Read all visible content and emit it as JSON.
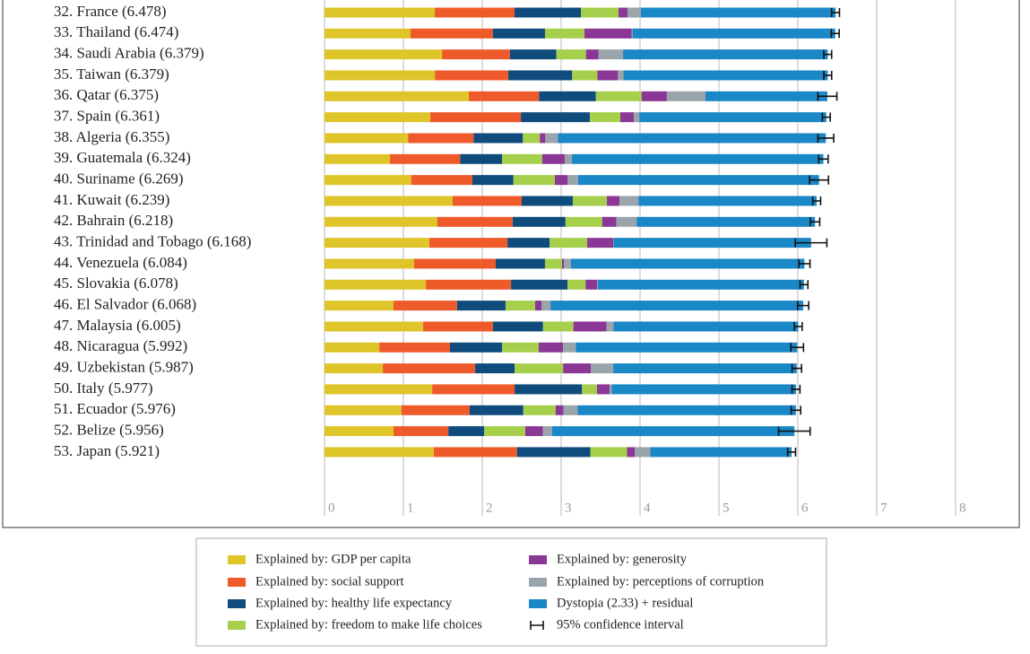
{
  "chart_data": {
    "type": "stacked-barh",
    "categories": [
      "32. France (6.478)",
      "33. Thailand (6.474)",
      "34. Saudi Arabia (6.379)",
      "35. Taiwan (6.379)",
      "36. Qatar (6.375)",
      "37. Spain (6.361)",
      "38. Algeria (6.355)",
      "39. Guatemala (6.324)",
      "40. Suriname (6.269)",
      "41. Kuwait (6.239)",
      "42. Bahrain (6.218)",
      "43. Trinidad and Tobago (6.168)",
      "44. Venezuela (6.084)",
      "45. Slovakia (6.078)",
      "46. El Salvador (6.068)",
      "47. Malaysia (6.005)",
      "48. Nicaragua (5.992)",
      "49. Uzbekistan (5.987)",
      "50. Italy (5.977)",
      "51. Ecuador (5.976)",
      "52. Belize (5.956)",
      "53. Japan (5.921)"
    ],
    "series": [
      {
        "name": "Explained by: GDP per capita",
        "color": "#dfc52a",
        "values": [
          1.398,
          1.09,
          1.49,
          1.4,
          1.83,
          1.34,
          1.06,
          0.83,
          1.1,
          1.625,
          1.43,
          1.33,
          1.135,
          1.285,
          0.875,
          1.25,
          0.695,
          0.74,
          1.365,
          0.975,
          0.875,
          1.385
        ]
      },
      {
        "name": "Explained by: social support",
        "color": "#ef5a2a",
        "values": [
          1.011,
          1.045,
          0.86,
          0.93,
          0.89,
          1.15,
          0.83,
          0.89,
          0.775,
          0.875,
          0.955,
          0.99,
          1.035,
          1.08,
          0.805,
          0.885,
          0.895,
          1.17,
          1.045,
          0.865,
          0.695,
          1.055
        ]
      },
      {
        "name": "Explained by: healthy life expectancy",
        "color": "#0f4c7d",
        "values": [
          0.841,
          0.66,
          0.59,
          0.81,
          0.72,
          0.875,
          0.625,
          0.53,
          0.52,
          0.65,
          0.67,
          0.535,
          0.625,
          0.715,
          0.615,
          0.635,
          0.66,
          0.5,
          0.855,
          0.68,
          0.455,
          0.93
        ]
      },
      {
        "name": "Explained by: freedom to make life choices",
        "color": "#a6cf4c",
        "values": [
          0.477,
          0.5,
          0.375,
          0.32,
          0.58,
          0.385,
          0.215,
          0.51,
          0.525,
          0.43,
          0.465,
          0.475,
          0.215,
          0.23,
          0.375,
          0.385,
          0.465,
          0.615,
          0.19,
          0.41,
          0.52,
          0.465
        ]
      },
      {
        "name": "Explained by: generosity",
        "color": "#8a3795",
        "values": [
          0.114,
          0.6,
          0.16,
          0.26,
          0.32,
          0.17,
          0.07,
          0.285,
          0.16,
          0.16,
          0.18,
          0.33,
          0.025,
          0.145,
          0.08,
          0.42,
          0.31,
          0.35,
          0.16,
          0.1,
          0.225,
          0.1
        ]
      },
      {
        "name": "Explained by: perceptions of corruption",
        "color": "#9aa4ab",
        "values": [
          0.17,
          0.01,
          0.31,
          0.07,
          0.49,
          0.07,
          0.16,
          0.09,
          0.135,
          0.24,
          0.26,
          0.005,
          0.09,
          0.01,
          0.115,
          0.09,
          0.16,
          0.285,
          0.025,
          0.18,
          0.115,
          0.195
        ]
      },
      {
        "name": "Dystopia (2.33) + residual",
        "color": "#1a87c6",
        "values": [
          2.467,
          2.569,
          2.594,
          2.589,
          1.545,
          2.371,
          3.395,
          3.189,
          3.054,
          2.259,
          2.258,
          2.503,
          2.959,
          2.613,
          3.203,
          2.34,
          2.807,
          2.327,
          2.337,
          2.766,
          3.071,
          1.791
        ]
      }
    ],
    "errors": [
      0.05,
      0.05,
      0.05,
      0.05,
      0.12,
      0.05,
      0.1,
      0.06,
      0.12,
      0.05,
      0.06,
      0.2,
      0.07,
      0.05,
      0.07,
      0.05,
      0.08,
      0.06,
      0.05,
      0.06,
      0.2,
      0.05
    ],
    "error_label": "95% confidence interval",
    "xlim": [
      0,
      8
    ],
    "xticks": [
      0,
      1,
      2,
      3,
      4,
      5,
      6,
      7,
      8
    ],
    "grid": true
  }
}
